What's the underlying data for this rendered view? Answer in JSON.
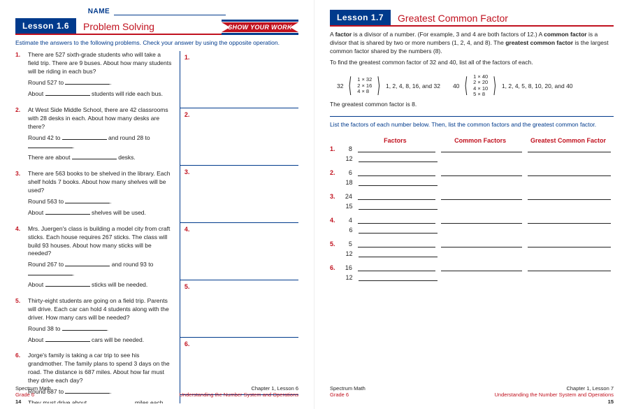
{
  "colors": {
    "navy": "#003a8c",
    "red": "#c1121f",
    "text": "#222222",
    "white": "#ffffff"
  },
  "left": {
    "name_label": "NAME",
    "lesson_bar": "Lesson 1.6",
    "lesson_title": "Problem Solving",
    "ribbon": "SHOW YOUR WORK",
    "intro": "Estimate the answers to the following problems. Check your answer by using the opposite operation.",
    "problems": [
      {
        "n": "1.",
        "lines": [
          "There are 527 sixth-grade students who will take a field trip. There are 9 buses. About how many students will be riding in each bus?",
          "Round 527 to ___________.",
          "About ___________ students will ride each bus."
        ]
      },
      {
        "n": "2.",
        "lines": [
          "At West Side Middle School, there are 42 classrooms with 28 desks in each. About how many desks are there?",
          "Round 42 to ___________ and round 28 to ___________.",
          "There are about ___________ desks."
        ]
      },
      {
        "n": "3.",
        "lines": [
          "There are 563 books to be shelved in the library. Each shelf holds 7 books. About how many shelves will be used?",
          "Round 563 to ___________.",
          "About ___________ shelves will be used."
        ]
      },
      {
        "n": "4.",
        "lines": [
          "Mrs. Juergen's class is building a model city from craft sticks. Each house requires 267 sticks. The class will build 93 houses. About how many sticks will be needed?",
          "Round 267 to ___________ and round 93 to ___________.",
          "About ___________ sticks will be needed."
        ]
      },
      {
        "n": "5.",
        "lines": [
          "Thirty-eight students are going on a field trip. Parents will drive. Each car can hold 4 students along with the driver. How many cars will be needed?",
          "Round 38 to ___________.",
          "About ___________ cars will be needed."
        ]
      },
      {
        "n": "6.",
        "lines": [
          "Jorge's family is taking a car trip to see his grandmother. The family plans to spend 3 days on the road. The distance is 687 miles. About how far must they drive each day?",
          "Round 687 to ___________.",
          "They must drive about ___________ miles each day."
        ]
      }
    ],
    "work_nums": [
      "1.",
      "2.",
      "3.",
      "4.",
      "5.",
      "6."
    ],
    "footer": {
      "brand": "Spectrum Math",
      "grade": "Grade 6",
      "chapter": "Chapter 1, Lesson 6",
      "subtitle": "Understanding the Number System and Operations",
      "page": "14"
    }
  },
  "right": {
    "lesson_bar": "Lesson 1.7",
    "lesson_title": "Greatest Common Factor",
    "explain": [
      "A <b>factor</b> is a divisor of a number. (For example, 3 and 4 are both factors of 12.) A <b>common factor</b> is a divisor that is shared by two or more numbers (1, 2, 4, and 8). The <b>greatest common factor</b> is the largest common factor shared by the numbers (8).",
      "To find the greatest common factor of 32 and 40, list all of the factors of each."
    ],
    "ex1": {
      "n": "32",
      "rows": [
        "1 × 32",
        "2 × 16",
        "4 × 8"
      ],
      "list": "1, 2, 4, 8, 16, and 32"
    },
    "ex2": {
      "n": "40",
      "rows": [
        "1 × 40",
        "2 × 20",
        "4 × 10",
        "5 × 8"
      ],
      "list": "1, 2, 4, 5, 8, 10, 20, and 40"
    },
    "conclusion": "The greatest common factor is 8.",
    "directions": "List the factors of each number below. Then, list the common factors and the greatest common factor.",
    "headers": [
      "Factors",
      "Common Factors",
      "Greatest Common Factor"
    ],
    "rows": [
      {
        "n": "1.",
        "a": "8",
        "b": "12"
      },
      {
        "n": "2.",
        "a": "6",
        "b": "18"
      },
      {
        "n": "3.",
        "a": "24",
        "b": "15"
      },
      {
        "n": "4.",
        "a": "4",
        "b": "6"
      },
      {
        "n": "5.",
        "a": "5",
        "b": "12"
      },
      {
        "n": "6.",
        "a": "16",
        "b": "12"
      }
    ],
    "footer": {
      "brand": "Spectrum Math",
      "grade": "Grade 6",
      "chapter": "Chapter 1, Lesson 7",
      "subtitle": "Understanding the Number System and Operations",
      "page": "15"
    }
  }
}
